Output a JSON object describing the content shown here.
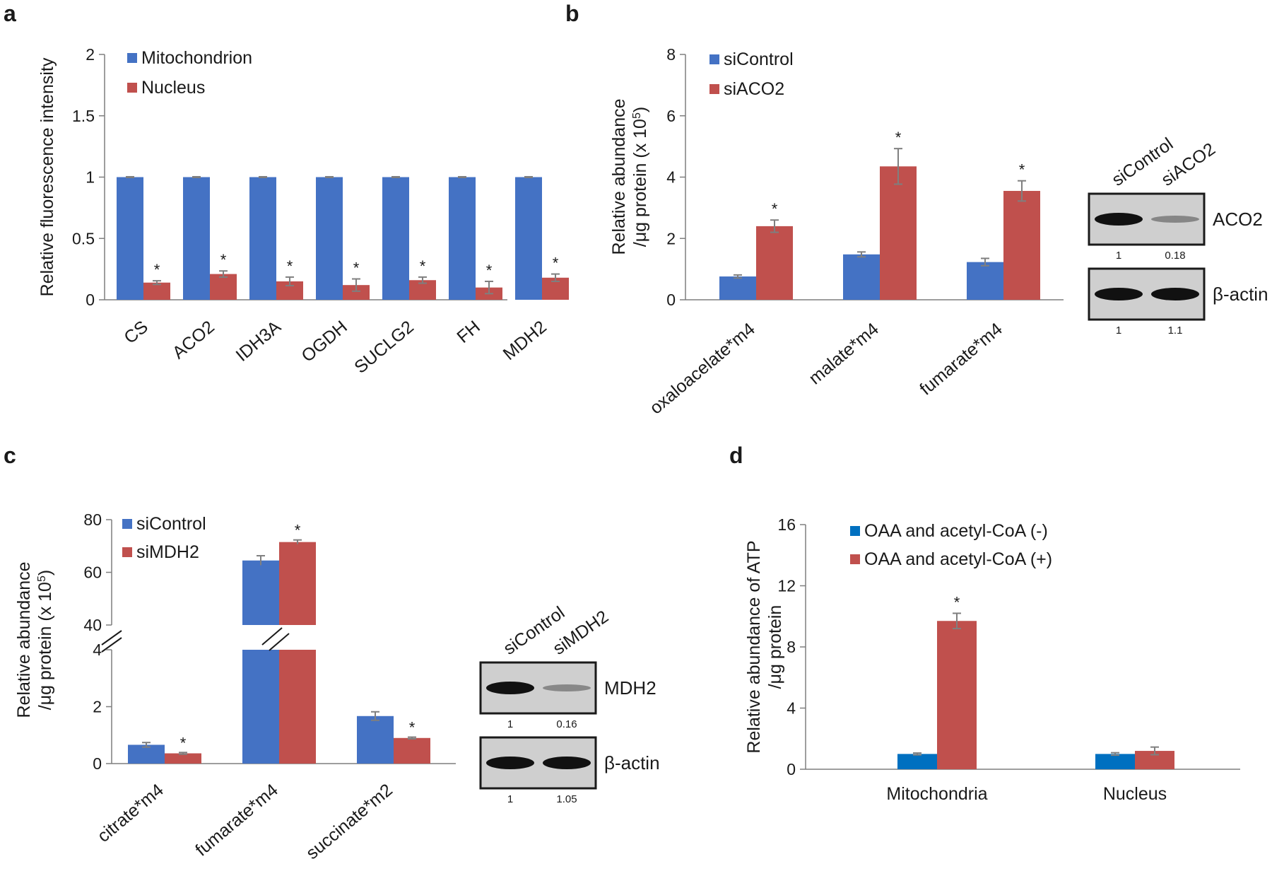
{
  "colors": {
    "blue": "#4472c4",
    "red": "#c0504d",
    "blue_d": "#0070c0",
    "axis": "#7f7f7f",
    "error": "#7f7f7f"
  },
  "chart_data": [
    {
      "panel": "a",
      "type": "bar",
      "ylabel": "Relative fluorescence intensity",
      "ylim": [
        0,
        2
      ],
      "yticks": [
        "0",
        "0.5",
        "1",
        "1.5",
        "2"
      ],
      "categories": [
        "CS",
        "ACO2",
        "IDH3A",
        "OGDH",
        "SUCLG2",
        "FH",
        "MDH2"
      ],
      "series": [
        {
          "name": "Mitochondrion",
          "values": [
            1,
            1,
            1,
            1,
            1,
            1,
            1
          ],
          "errors": [
            0.003,
            0.003,
            0.003,
            0.003,
            0.003,
            0.003,
            0.003
          ]
        },
        {
          "name": "Nucleus",
          "values": [
            0.14,
            0.21,
            0.15,
            0.12,
            0.16,
            0.1,
            0.18
          ],
          "errors": [
            0.015,
            0.025,
            0.035,
            0.05,
            0.025,
            0.05,
            0.03
          ]
        }
      ],
      "significance": [
        "*",
        "*",
        "*",
        "*",
        "*",
        "*",
        "*"
      ]
    },
    {
      "panel": "b",
      "type": "bar",
      "ylabel_line1": "Relative abundance",
      "ylabel_line2": "/μg protein (x 10",
      "ylabel_sup": "5",
      "ylabel_end": ")",
      "ylim": [
        0,
        8
      ],
      "yticks": [
        "0",
        "2",
        "4",
        "6",
        "8"
      ],
      "categories": [
        "oxaloacelate*m4",
        "malate*m4",
        "fumarate*m4"
      ],
      "series": [
        {
          "name": "siControl",
          "values": [
            0.76,
            1.48,
            1.23
          ],
          "errors": [
            0.05,
            0.08,
            0.12
          ]
        },
        {
          "name": "siACO2",
          "values": [
            2.4,
            4.35,
            3.55
          ],
          "errors": [
            0.2,
            0.58,
            0.33
          ]
        }
      ],
      "significance": [
        "*",
        "*",
        "*"
      ]
    },
    {
      "panel": "c",
      "type": "bar",
      "ylabel_line1": "Relative abundance",
      "ylabel_line2": "/μg protein (x 10",
      "ylabel_sup": "5",
      "ylabel_end": ")",
      "axis_break": {
        "lower_range": [
          0,
          4
        ],
        "upper_range": [
          40,
          80
        ]
      },
      "yticks_lower": [
        "0",
        "2",
        "4"
      ],
      "yticks_upper": [
        "40",
        "60",
        "80"
      ],
      "categories": [
        "citrate*m4",
        "fumarate*m4",
        "succinate*m2"
      ],
      "series": [
        {
          "name": "siControl",
          "values": [
            0.66,
            64.5,
            1.67
          ],
          "errors": [
            0.08,
            1.8,
            0.15
          ]
        },
        {
          "name": "siMDH2",
          "values": [
            0.36,
            71.5,
            0.9
          ],
          "errors": [
            0.03,
            0.8,
            0.03
          ]
        }
      ],
      "significance": [
        "*",
        "*",
        "*"
      ]
    },
    {
      "panel": "d",
      "type": "bar",
      "ylabel_line1": "Relative abundance of ATP",
      "ylabel_line2": "/μg protein",
      "ylim": [
        0,
        16
      ],
      "yticks": [
        "0",
        "4",
        "8",
        "12",
        "16"
      ],
      "categories": [
        "Mitochondria",
        "Nucleus"
      ],
      "series": [
        {
          "name": "OAA and acetyl-CoA (-)",
          "values": [
            1,
            1
          ],
          "errors": [
            0.06,
            0.08
          ]
        },
        {
          "name": "OAA and acetyl-CoA (+)",
          "values": [
            9.7,
            1.2
          ],
          "errors": [
            0.5,
            0.25
          ]
        }
      ],
      "significance": [
        "*",
        ""
      ]
    }
  ],
  "blots": {
    "b": {
      "lane_labels": [
        "siControl",
        "siACO2"
      ],
      "bands": [
        {
          "label": "ACO2",
          "quant": [
            "1",
            "0.18"
          ],
          "intensity": [
            1,
            0.18
          ]
        },
        {
          "label": "β-actin",
          "quant": [
            "1",
            "1.1"
          ],
          "intensity": [
            1,
            1.1
          ]
        }
      ]
    },
    "c": {
      "lane_labels": [
        "siControl",
        "siMDH2"
      ],
      "bands": [
        {
          "label": "MDH2",
          "quant": [
            "1",
            "0.16"
          ],
          "intensity": [
            1,
            0.16
          ]
        },
        {
          "label": "β-actin",
          "quant": [
            "1",
            "1.05"
          ],
          "intensity": [
            1,
            1.05
          ]
        }
      ]
    }
  },
  "panel_letters": [
    "a",
    "b",
    "c",
    "d"
  ]
}
